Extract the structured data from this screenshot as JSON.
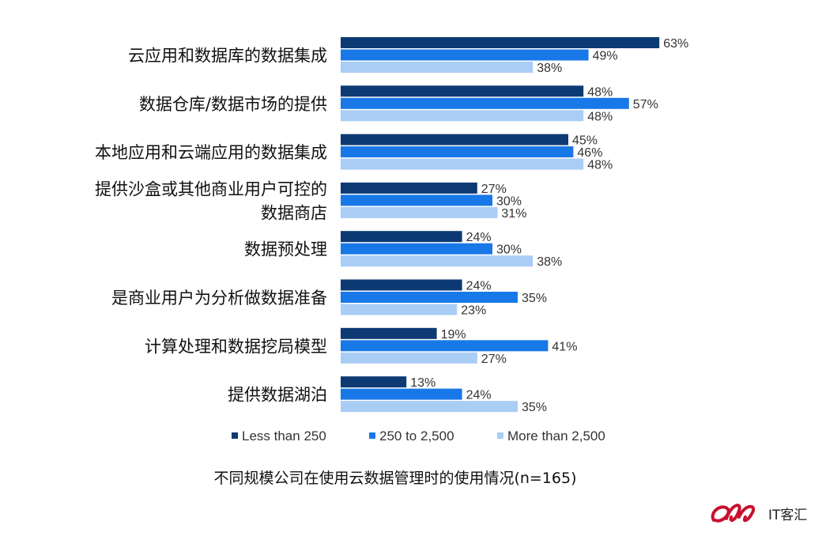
{
  "chart_data": {
    "type": "bar",
    "orientation": "horizontal",
    "title": "",
    "xlabel": "",
    "ylabel": "",
    "xlim": [
      0,
      70
    ],
    "grid": false,
    "legend_position": "bottom",
    "categories": [
      [
        "云应用和数据库的数据集成"
      ],
      [
        "数据仓库/数据市场的提供"
      ],
      [
        "本地应用和云端应用的数据集成"
      ],
      [
        "提供沙盒或其他商业用户可控的",
        "数据商店"
      ],
      [
        "数据预处理"
      ],
      [
        "是商业用户为分析做数据准备"
      ],
      [
        "计算处理和数据挖局模型"
      ],
      [
        "提供数据湖泊"
      ]
    ],
    "series": [
      {
        "name": "Less than 250",
        "color": "#0d3a73",
        "values": [
          63,
          48,
          45,
          27,
          24,
          24,
          19,
          13
        ]
      },
      {
        "name": "250 to 2,500",
        "color": "#1878e8",
        "values": [
          49,
          57,
          46,
          30,
          30,
          35,
          41,
          24
        ]
      },
      {
        "name": "More than 2,500",
        "color": "#a9cdf5",
        "values": [
          38,
          48,
          48,
          31,
          38,
          23,
          27,
          35
        ]
      }
    ],
    "value_suffix": "%"
  },
  "caption": "不同规模公司在使用云数据管理时的使用情况(n=165)",
  "watermark": {
    "text": "IT客汇",
    "color": "#c8102e"
  }
}
